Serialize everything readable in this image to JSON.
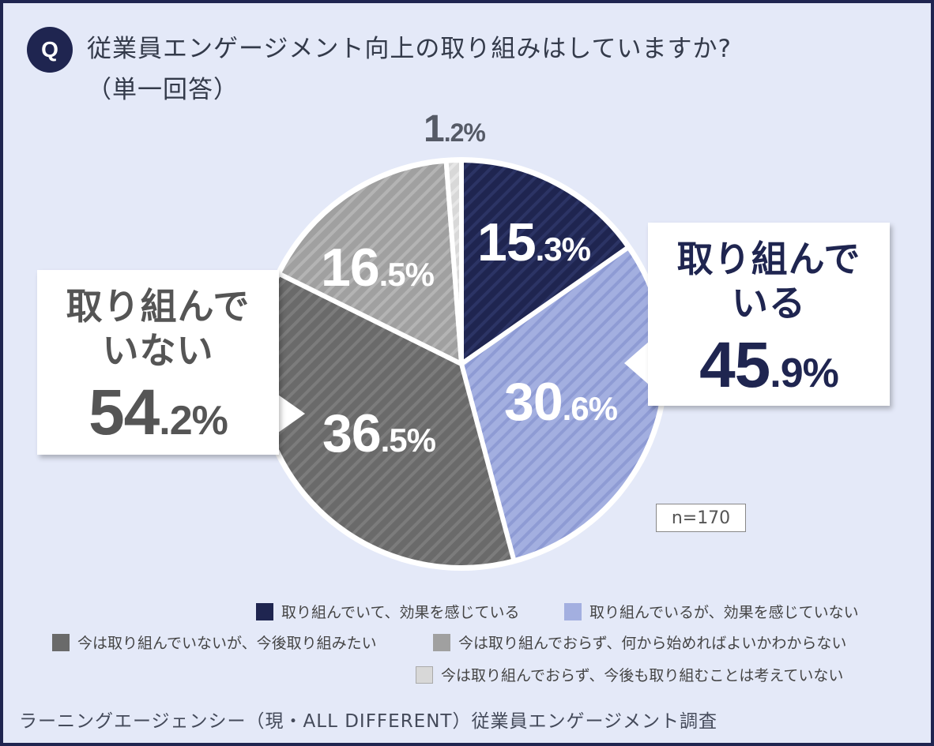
{
  "question": {
    "badge": "Q",
    "line1": "従業員エンゲージメント向上の取り組みはしていますか?",
    "line2": "（単一回答）"
  },
  "chart_data": {
    "type": "pie",
    "title": "従業員エンゲージメント向上の取り組みはしていますか?（単一回答）",
    "n": "n=170",
    "slices": [
      {
        "label": "取り組んでいて、効果を感じている",
        "value": 15.3,
        "int": "15",
        "dec": ".3%",
        "color": "#1f2550",
        "stripe": "#2c3465"
      },
      {
        "label": "取り組んでいるが、効果を感じていない",
        "value": 30.6,
        "int": "30",
        "dec": ".6%",
        "color": "#a3afe0",
        "stripe": "#8e9bd4"
      },
      {
        "label": "今は取り組んでいないが、今後取り組みたい",
        "value": 36.5,
        "int": "36",
        "dec": ".5%",
        "color": "#6a6a6a",
        "stripe": "#7c7c7c"
      },
      {
        "label": "今は取り組んでおらず、何から始めればよいかわからない",
        "value": 16.5,
        "int": "16",
        "dec": ".5%",
        "color": "#a0a0a0",
        "stripe": "#b4b4b4"
      },
      {
        "label": "今は取り組んでおらず、今後も取り組むことは考えていない",
        "value": 1.2,
        "int": "1",
        "dec": ".2%",
        "color": "#d8d8d8",
        "stripe": "#e6e6e6"
      }
    ],
    "groups": {
      "doing": {
        "label1": "取り組んで",
        "label2": "いる",
        "int": "45",
        "dec": ".9%"
      },
      "not_doing": {
        "label1": "取り組んで",
        "label2": "いない",
        "int": "54",
        "dec": ".2%"
      }
    }
  },
  "source": "ラーニングエージェンシー（現・ALL DIFFERENT）従業員エンゲージメント調査"
}
